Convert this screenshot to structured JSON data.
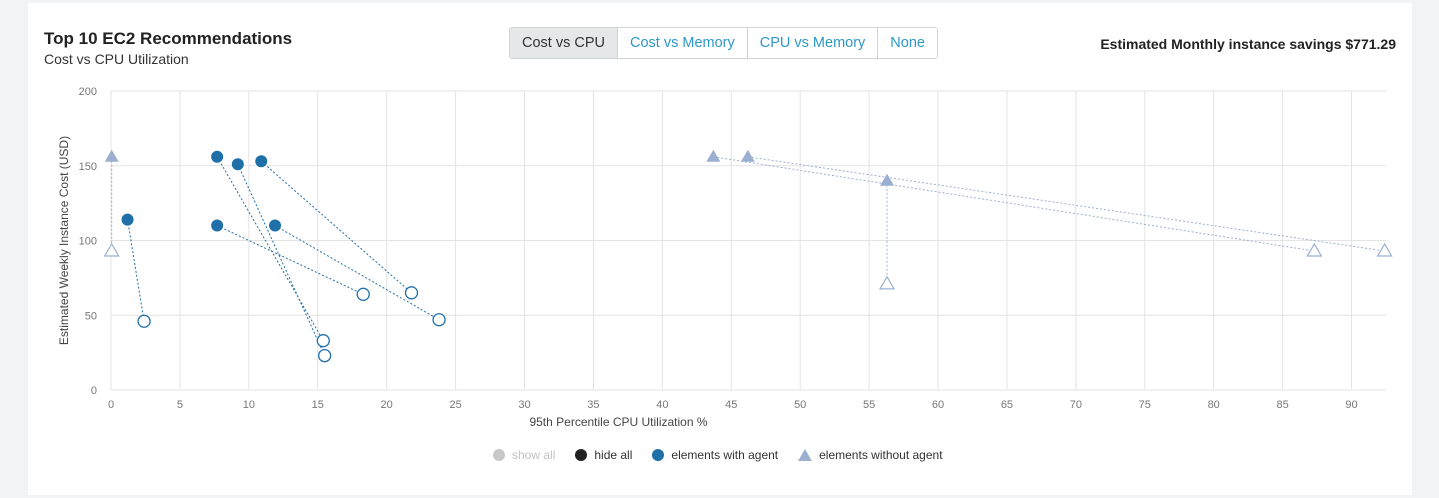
{
  "header": {
    "title": "Top 10 EC2 Recommendations",
    "subtitle": "Cost vs CPU Utilization",
    "savings": "Estimated Monthly instance savings $771.29"
  },
  "toggle": {
    "options": [
      "Cost vs CPU",
      "Cost vs Memory",
      "CPU vs Memory",
      "None"
    ],
    "active": "Cost vs CPU"
  },
  "legend": {
    "items": [
      {
        "label": "show all",
        "color": "#c8c8c8",
        "symbol": "circle",
        "dim": true
      },
      {
        "label": "hide all",
        "color": "#222222",
        "symbol": "circle",
        "dim": false
      },
      {
        "label": "elements with agent",
        "color": "#1f6fa8",
        "symbol": "circle",
        "dim": false
      },
      {
        "label": "elements without agent",
        "color": "#9bb0d0",
        "symbol": "triangle",
        "dim": false
      }
    ]
  },
  "chart_data": {
    "type": "scatter",
    "xlabel": "95th Percentile CPU Utilization %",
    "ylabel": "Estimated Weekly Instance Cost (USD)",
    "xlim": [
      0,
      92.5
    ],
    "ylim": [
      0,
      200
    ],
    "x_ticks": [
      0,
      5,
      10,
      15,
      20,
      25,
      30,
      35,
      40,
      45,
      50,
      55,
      60,
      65,
      70,
      75,
      80,
      85,
      90
    ],
    "y_ticks": [
      0,
      50,
      100,
      150,
      200
    ],
    "grid": true,
    "colors": {
      "with_agent": "#1f6fa8",
      "without_agent": "#9bb0d0",
      "grid": "#e3e3e3"
    },
    "series": [
      {
        "group": "elements with agent",
        "marker": "circle",
        "pairs": [
          {
            "current": [
              1.2,
              114
            ],
            "recommended": [
              2.4,
              46
            ]
          },
          {
            "current": [
              7.7,
              156
            ],
            "recommended": [
              15.4,
              33
            ]
          },
          {
            "current": [
              9.2,
              151
            ],
            "recommended": [
              15.5,
              23
            ]
          },
          {
            "current": [
              10.9,
              153
            ],
            "recommended": [
              21.8,
              65
            ]
          },
          {
            "current": [
              7.7,
              110
            ],
            "recommended": [
              18.3,
              64
            ]
          },
          {
            "current": [
              11.9,
              110
            ],
            "recommended": [
              23.8,
              47
            ]
          }
        ]
      },
      {
        "group": "elements without agent",
        "marker": "triangle",
        "pairs": [
          {
            "current": [
              0.05,
              156
            ],
            "recommended": [
              0.05,
              93
            ]
          },
          {
            "current": [
              43.7,
              156
            ],
            "recommended": [
              87.3,
              93
            ]
          },
          {
            "current": [
              46.2,
              156
            ],
            "recommended": [
              92.4,
              93
            ]
          },
          {
            "current": [
              56.3,
              140
            ],
            "recommended": [
              56.3,
              71
            ]
          }
        ]
      }
    ]
  }
}
